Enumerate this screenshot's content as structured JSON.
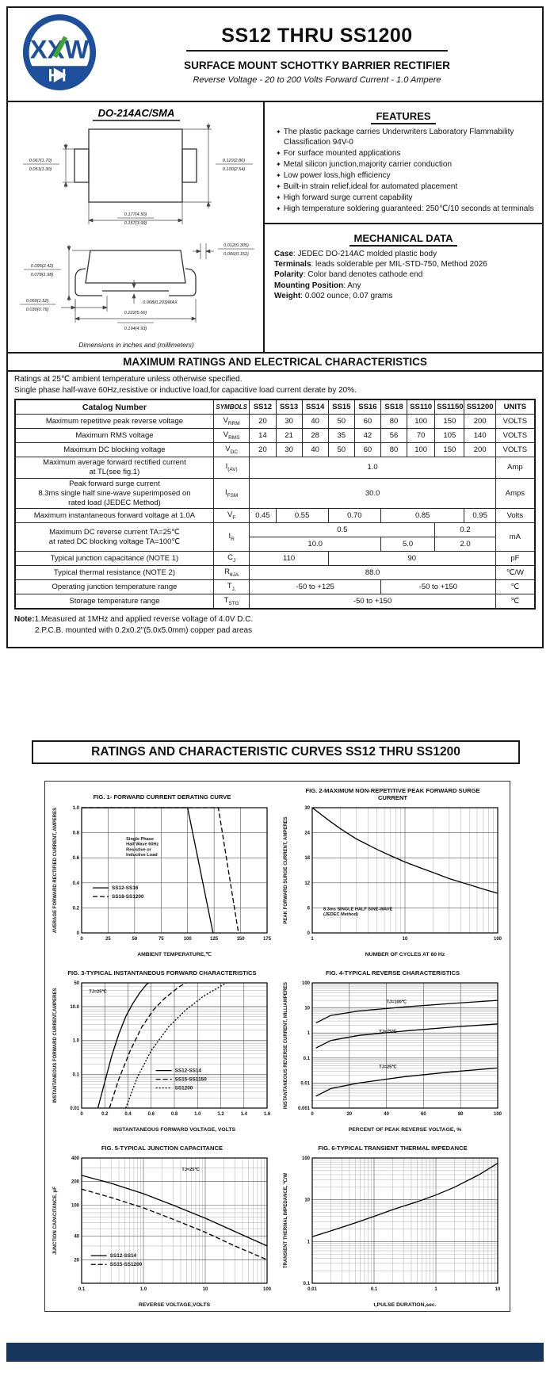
{
  "colors": {
    "logo_blue": "#1d4f9c",
    "logo_green": "#3fa535",
    "footer_navy": "#17375e",
    "ink": "#1a1a1a"
  },
  "header": {
    "logo_text": "XXW",
    "title": "SS12 THRU SS1200",
    "subtitle": "SURFACE MOUNT SCHOTTKY BARRIER RECTIFIER",
    "tagline": "Reverse Voltage - 20 to 200 Volts    Forward Current - 1.0 Ampere"
  },
  "package": {
    "title": "DO-214AC/SMA",
    "caption": "Dimensions in inches and (millimeters)",
    "dims": {
      "lead_w_a": "0.067(1.70)",
      "lead_w_b": "0.051(1.30)",
      "body_h_a": "0.110(2.80)",
      "body_h_b": "0.100(2.54)",
      "body_w_a": "0.177(4.50)",
      "body_w_b": "0.157(3.99)",
      "lead_t_a": "0.012(0.305)",
      "lead_t_b": "0.006(0.152)",
      "side_h_a": "0.095(2.42)",
      "side_h_b": "0.078(1.98)",
      "foot_a": "0.060(1.52)",
      "foot_b": "0.030(0.76)",
      "standoff": "0.008(0.203)MAX",
      "overall_a": "0.222(5.66)",
      "overall_b": "0.194(4.93)"
    }
  },
  "features": {
    "heading": "FEATURES",
    "items": [
      "The plastic package carries Underwriters Laboratory Flammability Classification 94V-0",
      "For surface mounted applications",
      "Metal silicon junction,majority carrier conduction",
      "Low power loss,high efficiency",
      "Built-in strain relief,ideal for automated placement",
      "High forward surge current capability",
      "High temperature soldering guaranteed: 250℃/10 seconds at terminals"
    ]
  },
  "mechanical": {
    "heading": "MECHANICAL DATA",
    "items": [
      {
        "k": "Case",
        "v": ": JEDEC DO-214AC molded plastic body"
      },
      {
        "k": "Terminals",
        "v": ": leads solderable per MIL-STD-750, Method 2026"
      },
      {
        "k": "Polarity",
        "v": ": Color band denotes cathode end"
      },
      {
        "k": "Mounting Position",
        "v": ": Any"
      },
      {
        "k": "Weight",
        "v": ": 0.002 ounce, 0.07 grams"
      }
    ]
  },
  "ratings": {
    "band": "MAXIMUM RATINGS AND ELECTRICAL CHARACTERISTICS",
    "intro1": "Ratings at 25℃ ambient temperature unless otherwise specified.",
    "intro2": "Single phase half-wave 60Hz,resistive or inductive load,for capacitive load current derate by 20%.",
    "header": {
      "catalog": "Catalog   Number",
      "symbols": "SYMBOLS",
      "units": "UNITS",
      "devices": [
        "SS12",
        "SS13",
        "SS14",
        "SS15",
        "SS16",
        "SS18",
        "SS110",
        "SS1150",
        "SS1200"
      ]
    },
    "rows": {
      "vrrm": {
        "label": "Maximum repetitive peak reverse voltage",
        "sym": "V",
        "sub": "RRM",
        "v": [
          "20",
          "30",
          "40",
          "50",
          "60",
          "80",
          "100",
          "150",
          "200"
        ],
        "unit": "VOLTS"
      },
      "vrms": {
        "label": "Maximum RMS voltage",
        "sym": "V",
        "sub": "RMS",
        "v": [
          "14",
          "21",
          "28",
          "35",
          "42",
          "56",
          "70",
          "105",
          "140"
        ],
        "unit": "VOLTS"
      },
      "vdc": {
        "label": "Maximum DC blocking voltage",
        "sym": "V",
        "sub": "DC",
        "v": [
          "20",
          "30",
          "40",
          "50",
          "60",
          "80",
          "100",
          "150",
          "200"
        ],
        "unit": "VOLTS"
      },
      "iav": {
        "label": "Maximum average forward rectified current\nat TL(see fig.1)",
        "sym": "I",
        "sub": "(AV)",
        "v": "1.0",
        "unit": "Amp"
      },
      "ifsm": {
        "label": "Peak forward surge current\n8.3ms single half sine-wave superimposed on\nrated load (JEDEC Method)",
        "sym": "I",
        "sub": "FSM",
        "v": "30.0",
        "unit": "Amps"
      },
      "vf": {
        "label": "Maximum instantaneous forward voltage at 1.0A",
        "sym": "V",
        "sub": "F",
        "v": [
          "0.45",
          "0.55",
          "0.70",
          "0.85",
          "0.95"
        ],
        "unit": "Volts"
      },
      "ir": {
        "label1": "Maximum DC reverse current      TA=25℃",
        "label2": "at rated DC blocking voltage      TA=100℃",
        "sym": "I",
        "sub": "R",
        "r1": [
          "0.5",
          "0.2"
        ],
        "r2": [
          "10.0",
          "5.0",
          "2.0"
        ],
        "unit": "mA"
      },
      "cj": {
        "label": "Typical junction capacitance (NOTE 1)",
        "sym": "C",
        "sub": "J",
        "v": [
          "110",
          "90"
        ],
        "unit": "pF"
      },
      "rth": {
        "label": "Typical thermal resistance (NOTE 2)",
        "sym": "R",
        "sub": "θJA",
        "v": "88.0",
        "unit": "℃/W"
      },
      "tj": {
        "label": "Operating junction temperature range",
        "sym": "T",
        "sub": "J,",
        "v": [
          "-50 to +125",
          "-50 to +150"
        ],
        "unit": "℃"
      },
      "tstg": {
        "label": "Storage temperature range",
        "sym": "T",
        "sub": "STG",
        "v": "-50 to +150",
        "unit": "℃"
      }
    },
    "note_title": "Note:",
    "note1": "1.Measured at 1MHz and applied reverse voltage of 4.0V D.C.",
    "note2": "2.P.C.B. mounted with 0.2x0.2\"(5.0x5.0mm) copper pad areas"
  },
  "curves_banner": "RATINGS AND CHARACTERISTIC CURVES SS12 THRU SS1200",
  "chart_data": [
    {
      "type": "line",
      "title": "FIG. 1- FORWARD CURRENT DERATING CURVE",
      "xlabel": "AMBIENT TEMPERATURE,℃",
      "ylabel": "AVERAGE FORWARD RECTIFIED CURRENT, AMPERES",
      "x": {
        "lim": [
          0,
          175
        ],
        "log": false,
        "ticks": [
          0,
          25,
          50,
          75,
          100,
          125,
          150,
          175
        ],
        "labels": [
          "0",
          "25",
          "50",
          "75",
          "100",
          "125",
          "150",
          "175"
        ]
      },
      "y": {
        "lim": [
          0,
          1
        ],
        "log": false,
        "ticks": [
          0,
          0.2,
          0.4,
          0.6,
          0.8,
          1.0
        ],
        "labels": [
          "0",
          "0.2",
          "0.4",
          "0.6",
          "0.8",
          "1.0"
        ]
      },
      "series": [
        {
          "name": "SS12-SS16",
          "dash": "",
          "points": [
            [
              0,
              1
            ],
            [
              100,
              1
            ],
            [
              124,
              0
            ]
          ]
        },
        {
          "name": "SS18-SS1200",
          "dash": "6,3",
          "points": [
            [
              0,
              1
            ],
            [
              129,
              1
            ],
            [
              148,
              0
            ]
          ]
        }
      ],
      "notes": [
        {
          "lines": [
            "Single Phase",
            "Half Wave 60Hz",
            "Resistive or",
            "Inductive Load"
          ],
          "fx": 0.24,
          "fy": 0.26
        }
      ],
      "legend": {
        "fx": 0.06,
        "fy": 0.64,
        "items": [
          {
            "label": "SS12-SS16",
            "dash": ""
          },
          {
            "label": "SS18-SS1200",
            "dash": "6,3"
          }
        ]
      }
    },
    {
      "type": "line",
      "title": "FIG. 2-MAXIMUM NON-REPETITIVE PEAK FORWARD SURGE CURRENT",
      "xlabel": "NUMBER OF CYCLES AT 60 Hz",
      "ylabel": "PEAK FORWARD SURGE CURRENT, AMPERES",
      "x": {
        "lim": [
          1,
          100
        ],
        "log": true,
        "ticks": [
          1,
          10,
          100
        ],
        "labels": [
          "1",
          "10",
          "100"
        ]
      },
      "y": {
        "lim": [
          0,
          30
        ],
        "log": false,
        "ticks": [
          0,
          6,
          12,
          18,
          24,
          30
        ],
        "labels": [
          "0",
          "6",
          "12",
          "18",
          "24",
          "30"
        ]
      },
      "series": [
        {
          "name": "surge",
          "dash": "",
          "points": [
            [
              1,
              30
            ],
            [
              1.5,
              27
            ],
            [
              2,
              25
            ],
            [
              3,
              22.5
            ],
            [
              5,
              20
            ],
            [
              7,
              18.5
            ],
            [
              10,
              17
            ],
            [
              15,
              15.5
            ],
            [
              20,
              14.5
            ],
            [
              30,
              13
            ],
            [
              50,
              11.5
            ],
            [
              70,
              10.5
            ],
            [
              100,
              9.5
            ]
          ]
        }
      ],
      "notes": [
        {
          "lines": [
            "8.3ms SINGLE HALF SINE-WAVE",
            "(JEDEC Method)"
          ],
          "fx": 0.06,
          "fy": 0.82
        }
      ],
      "legend": null
    },
    {
      "type": "line",
      "title": "FIG. 3-TYPICAL INSTANTANEOUS FORWARD CHARACTERISTICS",
      "xlabel": "INSTANTANEOUS FORWARD VOLTAGE, VOLTS",
      "ylabel": "INSTANTANEOUS FORWARD CURRENT,AMPERES",
      "x": {
        "lim": [
          0,
          1.6
        ],
        "log": false,
        "ticks": [
          0,
          0.2,
          0.4,
          0.6,
          0.8,
          1.0,
          1.2,
          1.4,
          1.6
        ],
        "labels": [
          "0",
          "0.2",
          "0.4",
          "0.6",
          "0.8",
          "1.0",
          "1.2",
          "1.4",
          "1.6"
        ]
      },
      "y": {
        "lim": [
          0.01,
          50
        ],
        "log": true,
        "ticks": [
          0.01,
          0.1,
          1,
          10,
          50
        ],
        "labels": [
          "0.01",
          "0.1",
          "1.0",
          "10.0",
          "50"
        ]
      },
      "series": [
        {
          "name": "SS12-SS14",
          "dash": "",
          "points": [
            [
              0.14,
              0.01
            ],
            [
              0.2,
              0.06
            ],
            [
              0.26,
              0.35
            ],
            [
              0.32,
              1.5
            ],
            [
              0.38,
              5
            ],
            [
              0.44,
              12
            ],
            [
              0.5,
              25
            ],
            [
              0.56,
              45
            ],
            [
              0.58,
              50
            ]
          ]
        },
        {
          "name": "SS15-SS1150",
          "dash": "6,3",
          "points": [
            [
              0.24,
              0.01
            ],
            [
              0.32,
              0.07
            ],
            [
              0.42,
              0.5
            ],
            [
              0.52,
              2.5
            ],
            [
              0.62,
              8
            ],
            [
              0.72,
              18
            ],
            [
              0.84,
              38
            ],
            [
              0.9,
              50
            ]
          ]
        },
        {
          "name": "SS1200",
          "dash": "2,2",
          "points": [
            [
              0.38,
              0.01
            ],
            [
              0.48,
              0.08
            ],
            [
              0.6,
              0.5
            ],
            [
              0.75,
              2.5
            ],
            [
              0.9,
              8
            ],
            [
              1.05,
              20
            ],
            [
              1.2,
              40
            ],
            [
              1.25,
              50
            ]
          ]
        }
      ],
      "notes": [
        {
          "lines": [
            "TJ=25℃"
          ],
          "fx": 0.04,
          "fy": 0.08
        }
      ],
      "legend": {
        "fx": 0.4,
        "fy": 0.7,
        "items": [
          {
            "label": "SS12-SS14",
            "dash": ""
          },
          {
            "label": "SS15-SS1150",
            "dash": "6,3"
          },
          {
            "label": "SS1200",
            "dash": "2,2"
          }
        ]
      }
    },
    {
      "type": "line",
      "title": "FIG. 4-TYPICAL REVERSE CHARACTERISTICS",
      "xlabel": "PERCENT OF PEAK REVERSE VOLTAGE, %",
      "ylabel": "INSTANTANEOUS REVERSE CURRENT, MILLIAMPERES",
      "x": {
        "lim": [
          0,
          100
        ],
        "log": false,
        "ticks": [
          0,
          20,
          40,
          60,
          80,
          100
        ],
        "labels": [
          "0",
          "20",
          "40",
          "60",
          "80",
          "100"
        ]
      },
      "y": {
        "lim": [
          0.001,
          100
        ],
        "log": true,
        "ticks": [
          0.001,
          0.01,
          0.1,
          1,
          10,
          100
        ],
        "labels": [
          "0.001",
          "0.01",
          "0.1",
          "1",
          "10",
          "100"
        ]
      },
      "series": [
        {
          "name": "TJ=100C",
          "dash": "",
          "points": [
            [
              2,
              2.5
            ],
            [
              10,
              5
            ],
            [
              25,
              7.5
            ],
            [
              50,
              11
            ],
            [
              75,
              15
            ],
            [
              100,
              20
            ]
          ]
        },
        {
          "name": "TJ=75C",
          "dash": "",
          "points": [
            [
              2,
              0.25
            ],
            [
              10,
              0.5
            ],
            [
              25,
              0.8
            ],
            [
              50,
              1.2
            ],
            [
              75,
              1.7
            ],
            [
              100,
              2.3
            ]
          ]
        },
        {
          "name": "TJ=25C",
          "dash": "",
          "points": [
            [
              2,
              0.003
            ],
            [
              10,
              0.006
            ],
            [
              25,
              0.01
            ],
            [
              50,
              0.018
            ],
            [
              75,
              0.028
            ],
            [
              100,
              0.04
            ]
          ]
        }
      ],
      "notes": [
        {
          "lines": [
            "TJ=100℃"
          ],
          "fx": 0.4,
          "fy": 0.16
        },
        {
          "lines": [
            "TJ=75℃"
          ],
          "fx": 0.36,
          "fy": 0.4
        },
        {
          "lines": [
            "TJ=25℃"
          ],
          "fx": 0.36,
          "fy": 0.68
        }
      ],
      "legend": null
    },
    {
      "type": "line",
      "title": "FIG. 5-TYPICAL JUNCTION CAPACITANCE",
      "xlabel": "REVERSE VOLTAGE,VOLTS",
      "ylabel": "JUNCTION CAPACITANCE, pF",
      "x": {
        "lim": [
          0.1,
          100
        ],
        "log": true,
        "ticks": [
          0.1,
          1,
          10,
          100
        ],
        "labels": [
          "0.1",
          "1.0",
          "10",
          "100"
        ]
      },
      "y": {
        "lim": [
          10,
          400
        ],
        "log": true,
        "ticks": [
          20,
          40,
          100,
          200,
          400
        ],
        "labels": [
          "20",
          "40",
          "100",
          "200",
          "400"
        ]
      },
      "series": [
        {
          "name": "SS12-SS14",
          "dash": "",
          "points": [
            [
              0.1,
              240
            ],
            [
              0.3,
              190
            ],
            [
              1,
              140
            ],
            [
              3,
              100
            ],
            [
              10,
              68
            ],
            [
              30,
              46
            ],
            [
              100,
              30
            ]
          ]
        },
        {
          "name": "SS15-SS1200",
          "dash": "6,3",
          "points": [
            [
              0.1,
              160
            ],
            [
              0.3,
              125
            ],
            [
              1,
              92
            ],
            [
              3,
              66
            ],
            [
              10,
              45
            ],
            [
              30,
              30
            ],
            [
              100,
              20
            ]
          ]
        }
      ],
      "notes": [
        {
          "lines": [
            "TJ=25℃"
          ],
          "fx": 0.54,
          "fy": 0.1
        }
      ],
      "legend": {
        "fx": 0.05,
        "fy": 0.78,
        "items": [
          {
            "label": "SS12-SS14",
            "dash": ""
          },
          {
            "label": "SS15-SS1200",
            "dash": "6,3"
          }
        ]
      }
    },
    {
      "type": "line",
      "title": "FIG. 6-TYPICAL TRANSIENT THERMAL IMPEDANCE",
      "xlabel": "t,PULSE DURATION,sec.",
      "ylabel": "TRANSIENT THERMAL IMPEDANCE, ℃/W",
      "x": {
        "lim": [
          0.01,
          10
        ],
        "log": true,
        "ticks": [
          0.01,
          0.1,
          1,
          10
        ],
        "labels": [
          "0.01",
          "0.1",
          "1",
          "10"
        ]
      },
      "y": {
        "lim": [
          0.1,
          100
        ],
        "log": true,
        "ticks": [
          0.1,
          1,
          10,
          100
        ],
        "labels": [
          "0.1",
          "1",
          "10",
          "100"
        ]
      },
      "series": [
        {
          "name": "thermal",
          "dash": "",
          "points": [
            [
              0.01,
              1.3
            ],
            [
              0.02,
              1.8
            ],
            [
              0.05,
              2.8
            ],
            [
              0.1,
              4
            ],
            [
              0.2,
              5.8
            ],
            [
              0.5,
              9
            ],
            [
              1,
              13
            ],
            [
              2,
              20
            ],
            [
              5,
              40
            ],
            [
              10,
              75
            ]
          ]
        }
      ],
      "notes": [],
      "legend": null
    }
  ]
}
